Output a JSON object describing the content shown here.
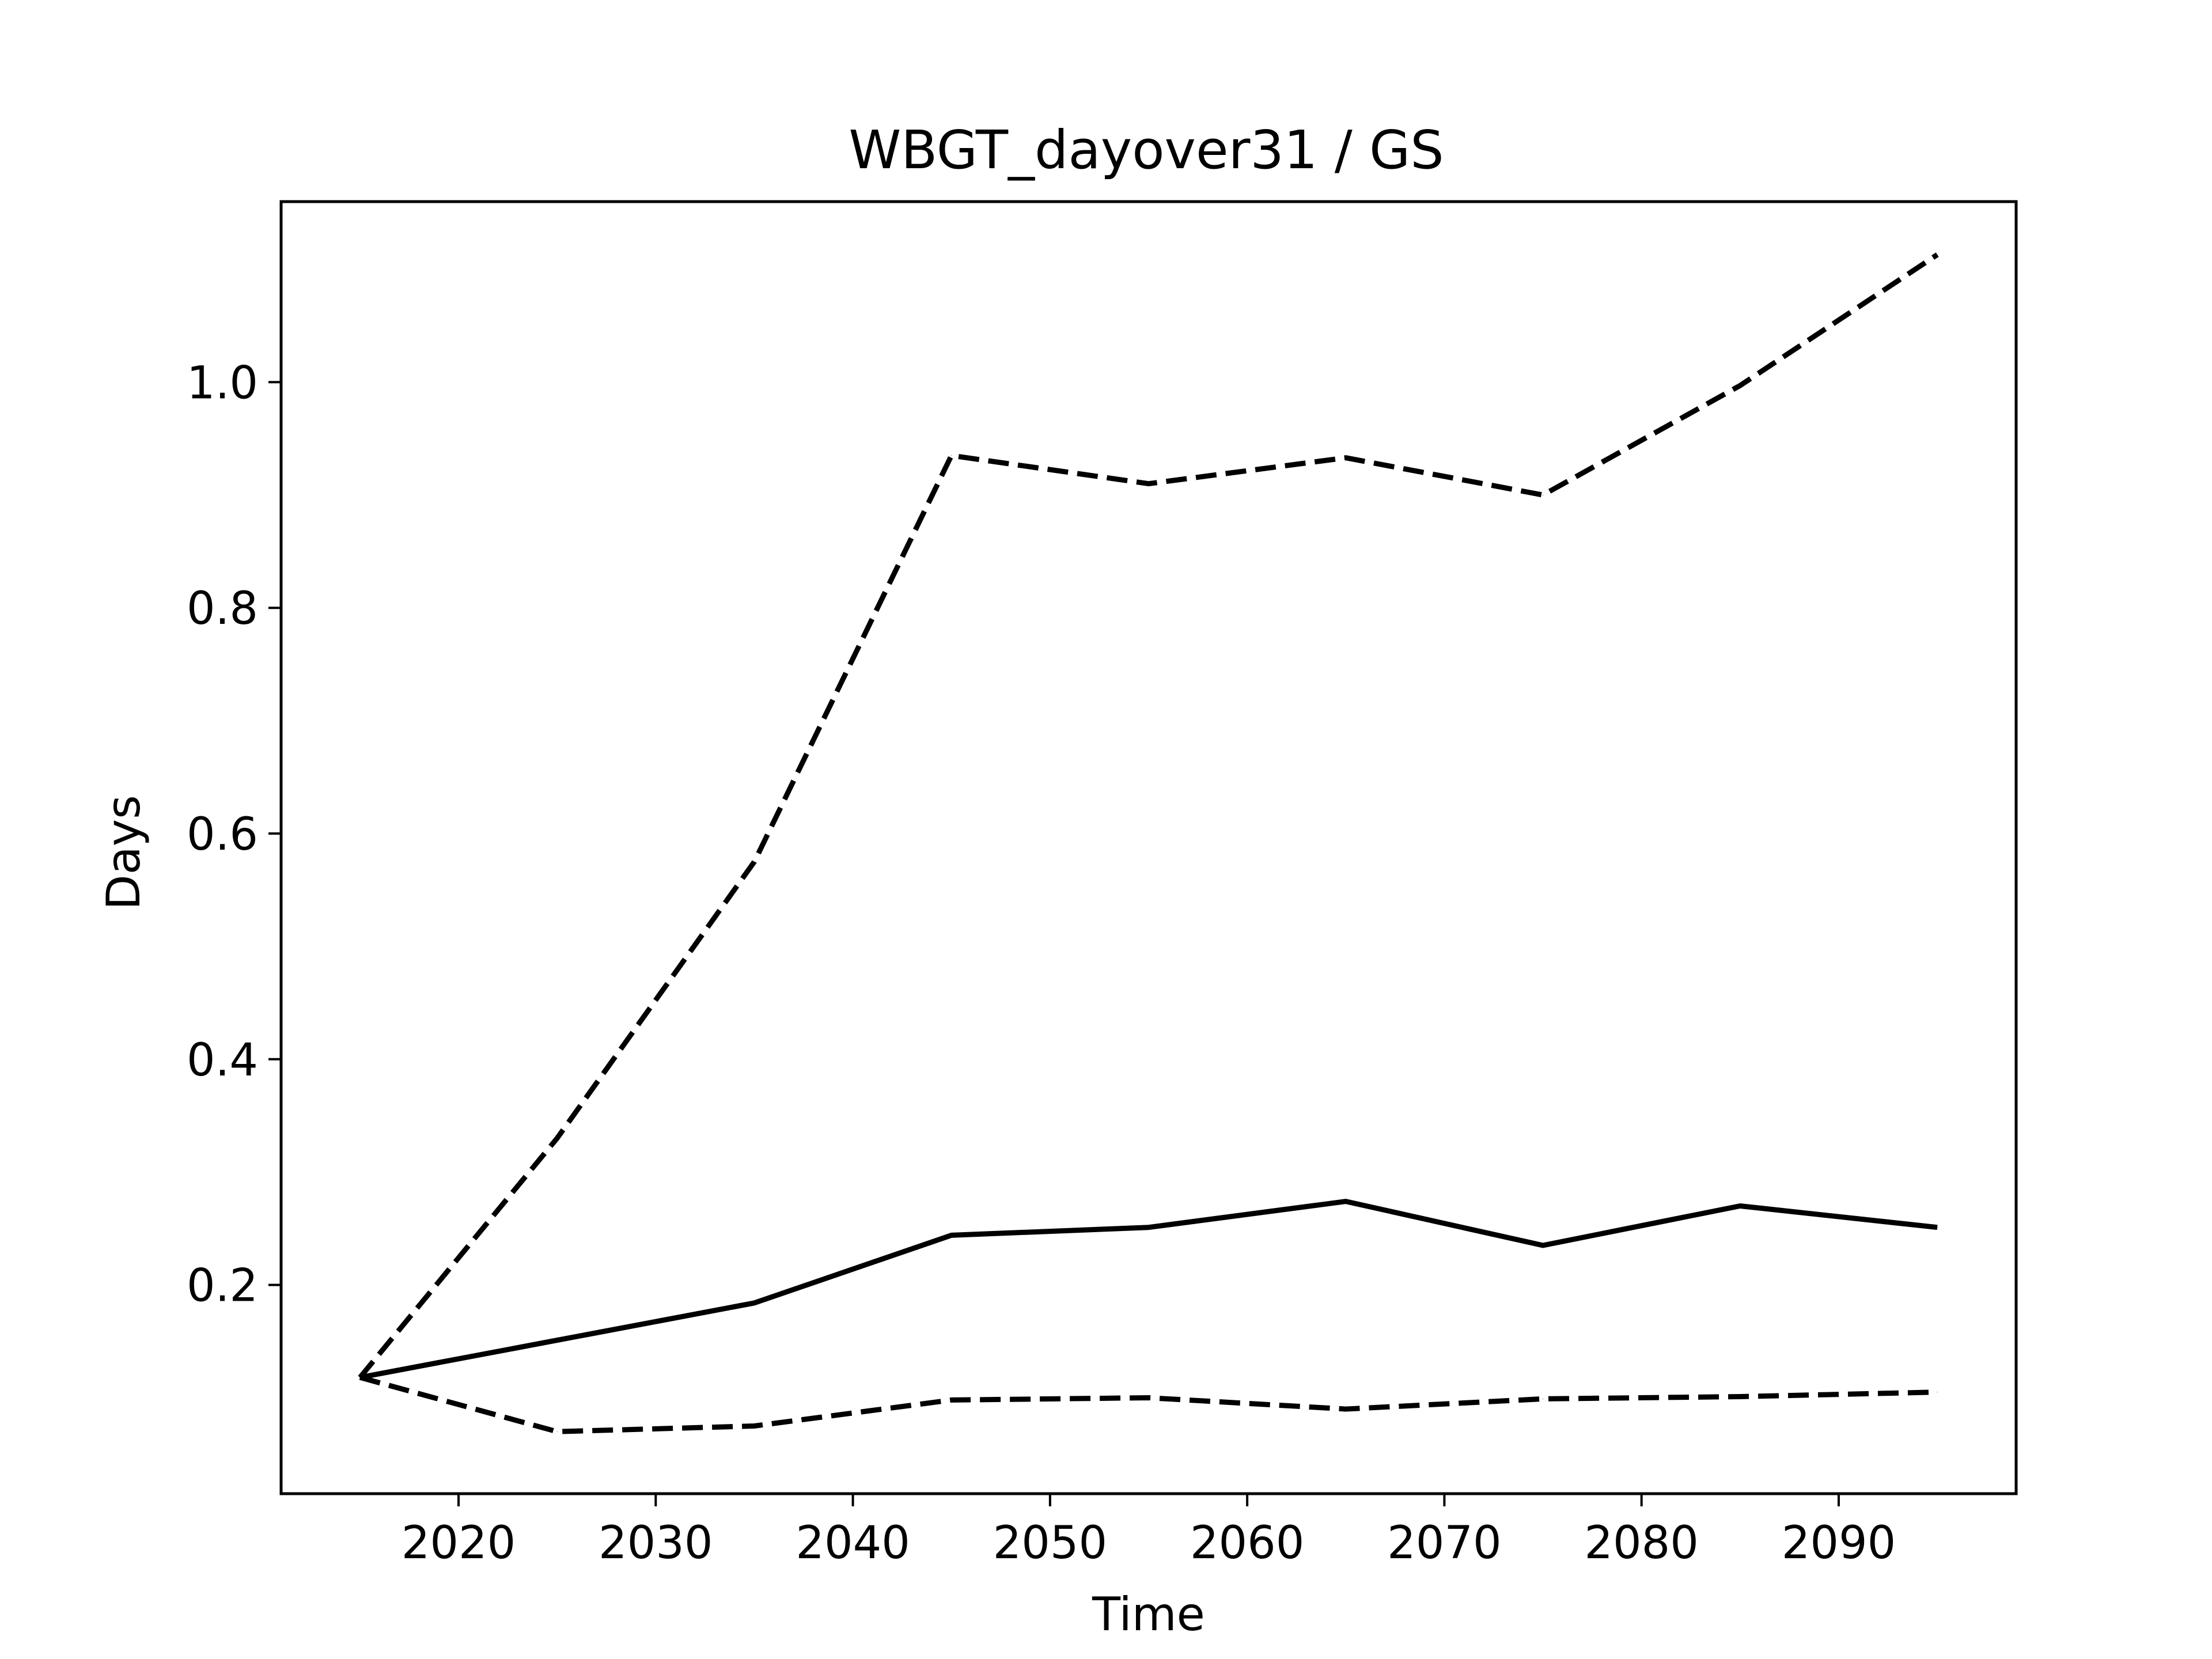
{
  "chart_data": {
    "type": "line",
    "title": "WBGT_dayover31 / GS",
    "xlabel": "Time",
    "ylabel": "Days",
    "xlim": [
      2011,
      2099
    ],
    "ylim": [
      0.015,
      1.16
    ],
    "xticks": [
      2020,
      2030,
      2040,
      2050,
      2060,
      2070,
      2080,
      2090
    ],
    "yticks": [
      0.2,
      0.4,
      0.6,
      0.8,
      1.0
    ],
    "xtick_labels": [
      "2020",
      "2030",
      "2040",
      "2050",
      "2060",
      "2070",
      "2080",
      "2090"
    ],
    "ytick_labels": [
      "0.2",
      "0.4",
      "0.6",
      "0.8",
      "1.0"
    ],
    "grid": false,
    "x": [
      2015,
      2025,
      2035,
      2045,
      2055,
      2065,
      2075,
      2085,
      2095
    ],
    "series": [
      {
        "style": "dashed",
        "color": "#000000",
        "values": [
          0.118,
          0.33,
          0.575,
          0.935,
          0.91,
          0.933,
          0.9,
          0.997,
          1.113
        ]
      },
      {
        "style": "solid",
        "color": "#000000",
        "values": [
          0.118,
          0.151,
          0.184,
          0.244,
          0.251,
          0.274,
          0.235,
          0.27,
          0.251
        ]
      },
      {
        "style": "dashed",
        "color": "#000000",
        "values": [
          0.118,
          0.07,
          0.075,
          0.098,
          0.1,
          0.09,
          0.099,
          0.101,
          0.105
        ]
      }
    ]
  }
}
